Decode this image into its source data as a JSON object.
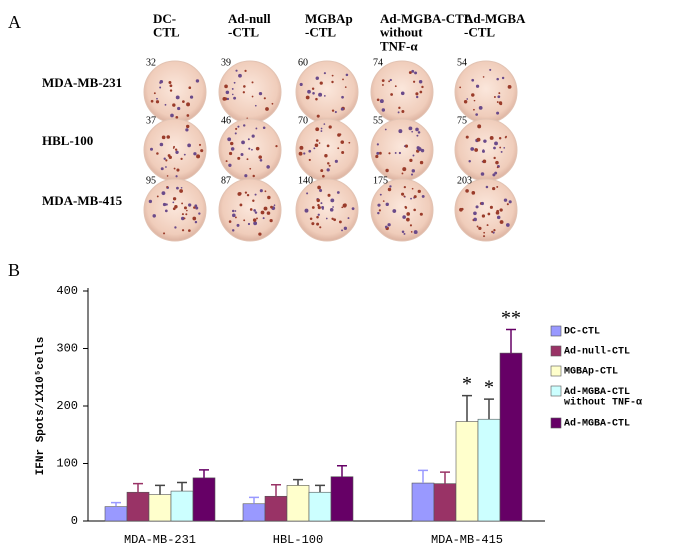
{
  "panel_a": {
    "label": "A",
    "columns": [
      "DC-\nCTL",
      "Ad-null\n-CTL",
      "MGBAp\n-CTL",
      "Ad-MGBA-CTL\nwithout\nTNF-α",
      "Ad-MGBA\n-CTL"
    ],
    "rows": [
      "MDA-MB-231",
      "HBL-100",
      "MDA-MB-415"
    ],
    "counts": [
      [
        "32",
        "39",
        "60",
        "74",
        "54"
      ],
      [
        "37",
        "46",
        "70",
        "55",
        "75"
      ],
      [
        "95",
        "87",
        "140",
        "175",
        "203"
      ]
    ]
  },
  "chart_data": {
    "type": "bar",
    "panel_label": "B",
    "y_label": "IFNr Spots/1X10⁵cells",
    "categories": [
      "MDA-MB-231",
      "HBL-100",
      "MDA-MB-415"
    ],
    "ylim": [
      0,
      400
    ],
    "yticks": [
      0,
      100,
      200,
      300,
      400
    ],
    "series": [
      {
        "name": "DC-CTL",
        "color": "#9999ff",
        "values": [
          25,
          30,
          66
        ],
        "errors": [
          7,
          11,
          22
        ],
        "markers": [
          null,
          null,
          null
        ]
      },
      {
        "name": "Ad-null-CTL",
        "color": "#993366",
        "values": [
          50,
          43,
          65
        ],
        "errors": [
          15,
          20,
          20
        ],
        "markers": [
          null,
          null,
          null
        ]
      },
      {
        "name": "MGBAp-CTL",
        "color": "#ffffcc",
        "values": [
          46,
          62,
          173
        ],
        "errors": [
          16,
          10,
          45
        ],
        "markers": [
          null,
          null,
          "*"
        ]
      },
      {
        "name": "Ad-MGBA-CTL\nwithout TNF-α",
        "color": "#ccffff",
        "values": [
          52,
          50,
          177
        ],
        "errors": [
          15,
          12,
          35
        ],
        "markers": [
          null,
          null,
          "*"
        ]
      },
      {
        "name": "Ad-MGBA-CTL",
        "color": "#660066",
        "values": [
          75,
          77,
          292
        ],
        "errors": [
          14,
          19,
          41
        ],
        "markers": [
          null,
          null,
          "**"
        ]
      }
    ]
  }
}
